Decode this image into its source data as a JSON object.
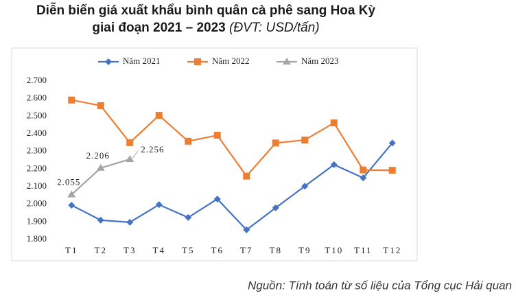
{
  "chart_data": {
    "type": "line",
    "title": [
      "Diễn biến giá xuất khẩu bình quân cà phê sang Hoa Kỳ",
      "giai đoạn 2021 – 2023"
    ],
    "unit_note": "(ĐVT: USD/tấn)",
    "source": "Nguồn: Tính toán từ số liệu của Tổng cục Hải quan",
    "categories": [
      "T1",
      "T2",
      "T3",
      "T4",
      "T5",
      "T6",
      "T7",
      "T8",
      "T9",
      "T10",
      "T11",
      "T12"
    ],
    "series": [
      {
        "name": "Năm 2021",
        "color": "#4472c4",
        "marker": "diamond",
        "values": [
          1995,
          1910,
          1898,
          1998,
          1925,
          2030,
          1855,
          1980,
          2103,
          2225,
          2150,
          2348
        ]
      },
      {
        "name": "Năm 2022",
        "color": "#ed7d31",
        "marker": "square",
        "values": [
          2592,
          2560,
          2350,
          2505,
          2358,
          2392,
          2160,
          2348,
          2365,
          2462,
          2195,
          2193
        ]
      },
      {
        "name": "Năm 2023",
        "color": "#a5a5a5",
        "marker": "triangle",
        "values": [
          2055,
          2206,
          2256,
          null,
          null,
          null,
          null,
          null,
          null,
          null,
          null,
          null
        ],
        "value_labels": [
          "2.055",
          "2.206",
          "2.256",
          null,
          null,
          null,
          null,
          null,
          null,
          null,
          null,
          null
        ]
      }
    ],
    "ylim": [
      1800,
      2700
    ],
    "yticks": [
      {
        "value": 1800,
        "label": "1.800"
      },
      {
        "value": 1900,
        "label": "1.900"
      },
      {
        "value": 2000,
        "label": "2.000"
      },
      {
        "value": 2100,
        "label": "2.100"
      },
      {
        "value": 2200,
        "label": "2.200"
      },
      {
        "value": 2300,
        "label": "2.300"
      },
      {
        "value": 2400,
        "label": "2.400"
      },
      {
        "value": 2500,
        "label": "2.500"
      },
      {
        "value": 2600,
        "label": "2.600"
      },
      {
        "value": 2700,
        "label": "2.700"
      }
    ],
    "grid": false,
    "legend": "top"
  }
}
